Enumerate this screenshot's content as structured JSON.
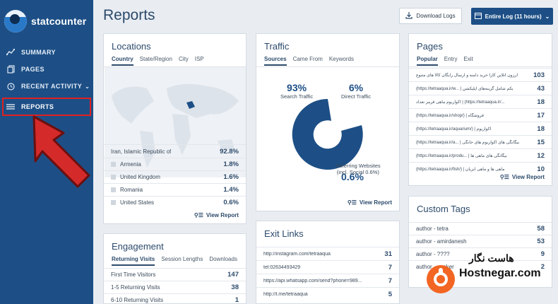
{
  "brand": {
    "name": "statcounter"
  },
  "sidebar": {
    "items": [
      {
        "label": "SUMMARY",
        "icon": "chart-line-icon"
      },
      {
        "label": "PAGES",
        "icon": "pages-icon"
      },
      {
        "label": "RECENT ACTIVITY",
        "icon": "clock-icon"
      },
      {
        "label": "REPORTS",
        "icon": "list-icon"
      }
    ]
  },
  "header": {
    "title": "Reports",
    "download_label": "Download Logs",
    "log_label": "Entire Log (11 hours)"
  },
  "locations": {
    "title": "Locations",
    "tabs": [
      "Country",
      "State/Region",
      "City",
      "ISP"
    ],
    "rows": [
      {
        "name": "Iran, Islamic Republic of",
        "value": "92.8%"
      },
      {
        "name": "Armenia",
        "value": "1.8%"
      },
      {
        "name": "United Kingdom",
        "value": "1.6%"
      },
      {
        "name": "Romania",
        "value": "1.4%"
      },
      {
        "name": "United States",
        "value": "0.6%"
      }
    ],
    "view_report": "View Report"
  },
  "traffic": {
    "title": "Traffic",
    "tabs": [
      "Sources",
      "Came From",
      "Keywords"
    ],
    "search_pct": "93%",
    "search_label": "Search Traffic",
    "direct_pct": "6%",
    "direct_label": "Direct Traffic",
    "referring_label": "Referring Websites",
    "referring_sub": "(incl. Social 0.6%)",
    "referring_pct": "0.6%",
    "view_report": "View Report"
  },
  "pages": {
    "title": "Pages",
    "tabs": [
      "Popular",
      "Entry",
      "Exit"
    ],
    "rows": [
      {
        "name": "ارزون آنلاین کارا خرید دامنه و ارسال رایگان کالا های متنوع",
        "value": "103"
      },
      {
        "name": "(https://tetraaqua.ir/w... | یکم شامل گزینه‌های آپلیکشن",
        "value": "43"
      },
      {
        "name": "آکواریوم ماهی قرمز تعداد | (https://tetraaqua.ir/...",
        "value": "18"
      },
      {
        "name": "(https://tetraaqua.ir/shop/) | فروشگاه",
        "value": "17"
      },
      {
        "name": "(https://tetraaqua.ir/aquarium/) | آکواریوم",
        "value": "18"
      },
      {
        "name": "(https://tetraaqua.ir/a... | بیگانگی های اکواریوم های خانگی",
        "value": "15"
      },
      {
        "name": "(https://tetraaqua.ir/produ... | بیگانگی های ماهی ها",
        "value": "12"
      },
      {
        "name": "(https://tetraaqua.ir/fish/) | ماهی ها و ماهی آبزیان",
        "value": "10"
      }
    ],
    "view_report": "View Report"
  },
  "custom_tags": {
    "title": "Custom Tags",
    "rows": [
      {
        "name": "author - tetra",
        "value": "58"
      },
      {
        "name": "author - amirdanesh",
        "value": "53"
      },
      {
        "name": "author - ????",
        "value": "9"
      },
      {
        "name": "author - esoker",
        "value": "2"
      }
    ]
  },
  "engagement": {
    "title": "Engagement",
    "tabs": [
      "Returning Visits",
      "Session Lengths",
      "Downloads"
    ],
    "rows": [
      {
        "name": "First Time Visitors",
        "value": "147"
      },
      {
        "name": "1-5 Returning Visits",
        "value": "38"
      },
      {
        "name": "6-10 Returning Visits",
        "value": "1"
      }
    ]
  },
  "exit_links": {
    "title": "Exit Links",
    "rows": [
      {
        "name": "http://instagram.com/tetraaqua",
        "value": "31"
      },
      {
        "name": "tel:02634493429",
        "value": "7"
      },
      {
        "name": "https://api.whatsapp.com/send?phone=989...",
        "value": "7"
      },
      {
        "name": "http://t.me/tetraaqua",
        "value": "5"
      }
    ]
  },
  "watermark": {
    "fa": "هاست نگار",
    "en": "Hostnegar.com"
  }
}
